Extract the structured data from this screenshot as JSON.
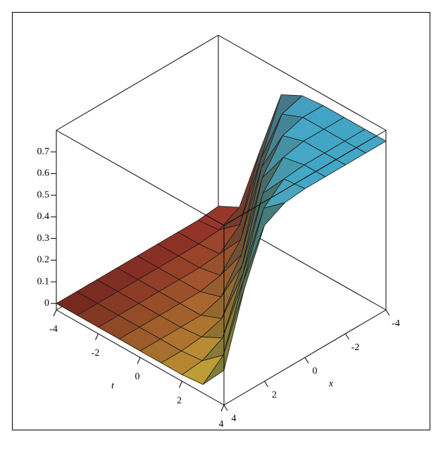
{
  "chart_data": {
    "type": "surface",
    "tlabel": "t",
    "xlabel": "x",
    "t": [
      -4,
      -3,
      -2,
      -1,
      0,
      1,
      2,
      3,
      4
    ],
    "x": [
      -4,
      -3,
      -2,
      -1,
      0,
      1,
      2,
      3,
      4
    ],
    "z": [
      [
        0.01,
        0,
        0,
        0,
        0,
        0,
        0,
        0,
        0
      ],
      [
        0.06,
        0.01,
        0,
        0,
        0,
        0,
        0,
        0,
        0
      ],
      [
        0.38,
        0.09,
        0.01,
        0,
        0,
        0,
        0,
        0,
        0
      ],
      [
        0.69,
        0.45,
        0.13,
        0.02,
        0,
        0,
        0,
        0,
        0
      ],
      [
        0.74,
        0.71,
        0.52,
        0.17,
        0.03,
        0,
        0,
        0,
        0
      ],
      [
        0.75,
        0.75,
        0.72,
        0.58,
        0.23,
        0.04,
        0.01,
        0,
        0
      ],
      [
        0.75,
        0.75,
        0.75,
        0.73,
        0.62,
        0.3,
        0.06,
        0.01,
        0
      ],
      [
        0.75,
        0.75,
        0.75,
        0.75,
        0.74,
        0.66,
        0.38,
        0.09,
        0.01
      ],
      [
        0.75,
        0.75,
        0.75,
        0.75,
        0.75,
        0.74,
        0.69,
        0.45,
        0.13
      ]
    ],
    "tlim": [
      -4,
      4
    ],
    "xlim": [
      -4,
      4
    ],
    "zlim": [
      -0.03,
      0.8
    ],
    "tticks": [
      -4,
      -2,
      0,
      2,
      4
    ],
    "xticks": [
      -4,
      -2,
      0,
      2,
      4
    ],
    "zticks": [
      0,
      0.1,
      0.2,
      0.3,
      0.4,
      0.5,
      0.6,
      0.7
    ],
    "colorscale": [
      "#e8453c",
      "#f2e03e",
      "#3fbff2"
    ],
    "mesh_color": "#1a1a1a"
  }
}
